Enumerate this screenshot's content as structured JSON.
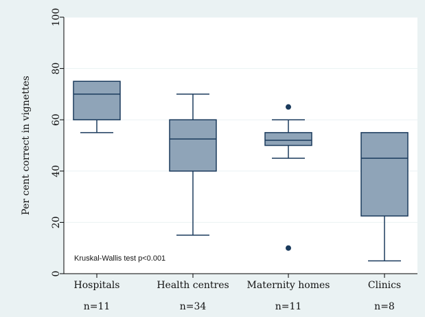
{
  "chart_data": {
    "type": "box",
    "ylabel": "Per cent correct in vignettes",
    "ylim": [
      0,
      100
    ],
    "yticks": [
      0,
      20,
      40,
      60,
      80,
      100
    ],
    "grid": true,
    "categories": [
      "Hospitals",
      "Health centres",
      "Maternity homes",
      "Clinics"
    ],
    "counts": [
      "n=11",
      "n=34",
      "n=11",
      "n=8"
    ],
    "boxes": [
      {
        "category": "Hospitals",
        "whisker_low": 55,
        "q1": 60,
        "median": 70,
        "q3": 75,
        "whisker_high": 75,
        "outliers": []
      },
      {
        "category": "Health centres",
        "whisker_low": 15,
        "q1": 40,
        "median": 52.5,
        "q3": 60,
        "whisker_high": 70,
        "outliers": []
      },
      {
        "category": "Maternity homes",
        "whisker_low": 45,
        "q1": 50,
        "median": 52,
        "q3": 55,
        "whisker_high": 60,
        "outliers": [
          65,
          10
        ]
      },
      {
        "category": "Clinics",
        "whisker_low": 5,
        "q1": 22.5,
        "median": 45,
        "q3": 55,
        "whisker_high": 55,
        "outliers": []
      }
    ],
    "annotation": "Kruskal-Wallis test p<0.001",
    "colors": {
      "box_fill": "#8fa4b8",
      "box_stroke": "#1a3a5c",
      "grid": "#eaf2f3",
      "background": "#eaf2f3",
      "plot_bg": "#ffffff"
    }
  }
}
